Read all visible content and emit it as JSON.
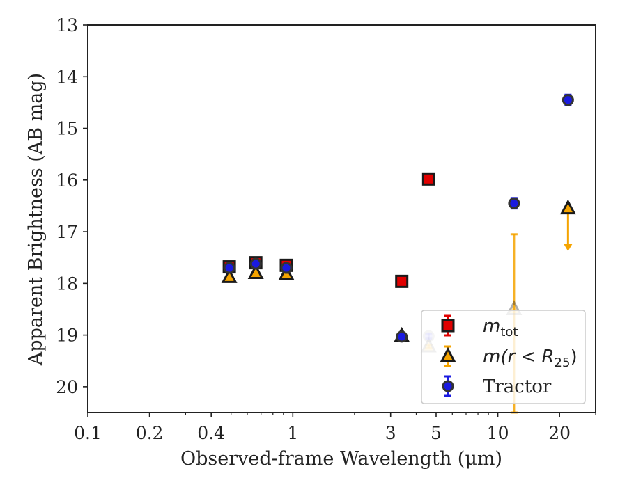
{
  "chart_data": {
    "type": "scatter",
    "xlabel": "Observed-frame Wavelength (μm)",
    "ylabel": "Apparent Brightness (AB mag)",
    "xscale": "log",
    "xlim": [
      0.1,
      30
    ],
    "ylim": [
      20.5,
      13
    ],
    "y_inverted": true,
    "x_ticks": [
      {
        "value": 0.1,
        "label": "0.1"
      },
      {
        "value": 0.2,
        "label": "0.2"
      },
      {
        "value": 0.4,
        "label": "0.4"
      },
      {
        "value": 1,
        "label": "1"
      },
      {
        "value": 3,
        "label": "3"
      },
      {
        "value": 5,
        "label": "5"
      },
      {
        "value": 10,
        "label": "10"
      },
      {
        "value": 20,
        "label": "20"
      }
    ],
    "y_ticks": [
      13,
      14,
      15,
      16,
      17,
      18,
      19,
      20
    ],
    "grid": false,
    "legend": {
      "position": "lower-right",
      "entries": [
        {
          "series": "m_tot",
          "label_main": "m",
          "label_sub": "tot"
        },
        {
          "series": "m_r_R25",
          "label_pre": "m(r < R",
          "label_sub": "25",
          "label_post": ")"
        },
        {
          "series": "tractor",
          "label_main": "Tractor"
        }
      ]
    },
    "series": [
      {
        "key": "m_tot",
        "marker": "square",
        "color": "#e00000",
        "edge": "#1a1a1a",
        "points": [
          {
            "x": 0.49,
            "y": 17.68,
            "err": 0.03
          },
          {
            "x": 0.66,
            "y": 17.6,
            "err": 0.03
          },
          {
            "x": 0.93,
            "y": 17.65,
            "err": 0.03
          },
          {
            "x": 3.4,
            "y": 17.96,
            "err": 0.03
          },
          {
            "x": 4.6,
            "y": 15.98,
            "err": 0.03
          }
        ]
      },
      {
        "key": "m_r_R25",
        "marker": "triangle",
        "color": "#f5a400",
        "edge": "#1a1a1a",
        "points": [
          {
            "x": 0.49,
            "y": 17.88,
            "err": 0.03,
            "alpha": 1
          },
          {
            "x": 0.66,
            "y": 17.8,
            "err": 0.03,
            "alpha": 1
          },
          {
            "x": 0.93,
            "y": 17.82,
            "err": 0.03,
            "alpha": 1
          },
          {
            "x": 3.4,
            "y": 19.02,
            "err": 0.03,
            "alpha": 1
          },
          {
            "x": 4.6,
            "y": 19.22,
            "err": 0.03,
            "alpha": 0.35
          },
          {
            "x": 12,
            "y": 18.5,
            "err_low": 18.5,
            "err_high": 17.05,
            "err_to": 20.5,
            "alpha": 0.35
          },
          {
            "x": 22,
            "y": 16.55,
            "upper_limit_to": 17.35,
            "alpha": 1
          }
        ]
      },
      {
        "key": "tractor",
        "marker": "circle",
        "color": "#1a1ae0",
        "edge": "#333333",
        "points": [
          {
            "x": 0.49,
            "y": 17.7,
            "err": 0.04,
            "alpha": 1
          },
          {
            "x": 0.66,
            "y": 17.62,
            "err": 0.04,
            "alpha": 1
          },
          {
            "x": 0.93,
            "y": 17.7,
            "err": 0.04,
            "alpha": 1
          },
          {
            "x": 3.4,
            "y": 19.03,
            "err": 0.05,
            "alpha": 1
          },
          {
            "x": 4.6,
            "y": 19.02,
            "err": 0.05,
            "alpha": 0.25
          },
          {
            "x": 12,
            "y": 16.45,
            "err": 0.1,
            "alpha": 1
          },
          {
            "x": 22,
            "y": 14.45,
            "err": 0.1,
            "alpha": 1
          }
        ]
      }
    ]
  }
}
